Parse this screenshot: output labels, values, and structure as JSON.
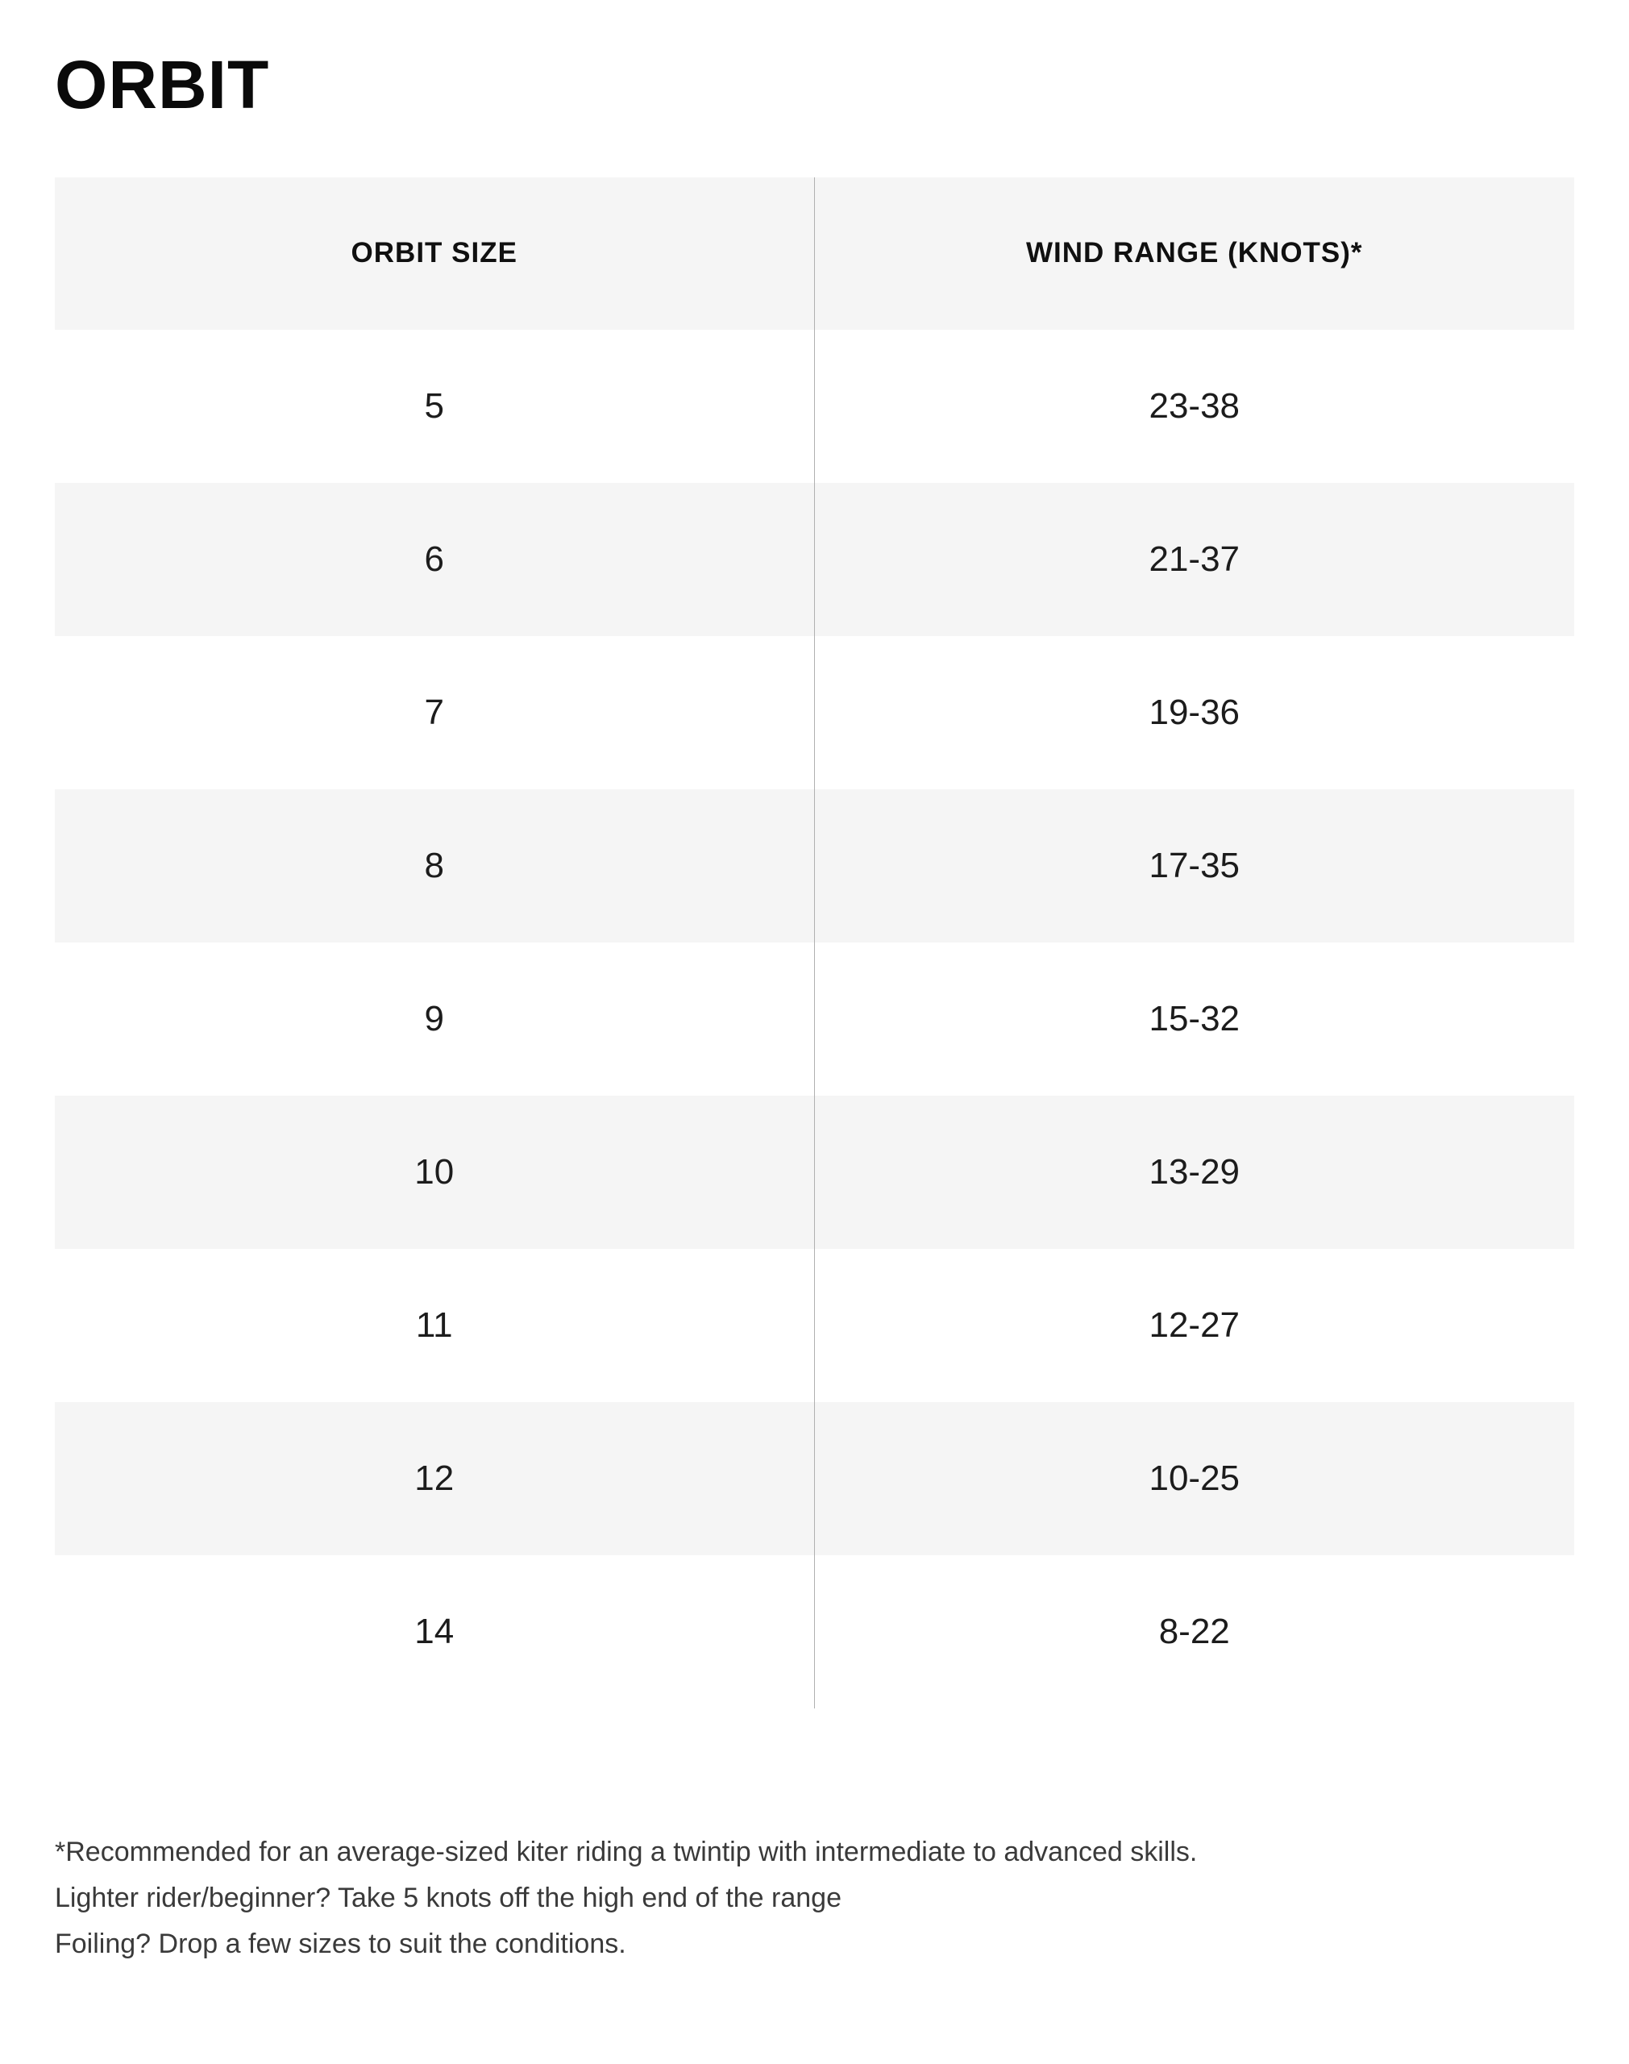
{
  "title": "ORBIT",
  "table": {
    "headers": [
      "ORBIT SIZE",
      "WIND RANGE (KNOTS)*"
    ],
    "rows": [
      {
        "size": "5",
        "wind": "23-38"
      },
      {
        "size": "6",
        "wind": "21-37"
      },
      {
        "size": "7",
        "wind": "19-36"
      },
      {
        "size": "8",
        "wind": "17-35"
      },
      {
        "size": "9",
        "wind": "15-32"
      },
      {
        "size": "10",
        "wind": "13-29"
      },
      {
        "size": "11",
        "wind": "12-27"
      },
      {
        "size": "12",
        "wind": "10-25"
      },
      {
        "size": "14",
        "wind": "8-22"
      }
    ]
  },
  "footnote": {
    "lines": [
      "*Recommended for an average-sized kiter riding a twintip with intermediate to advanced skills.",
      "Lighter rider/beginner? Take 5 knots off the high end of the range",
      "Foiling? Drop a few sizes to suit the conditions."
    ]
  },
  "colors": {
    "background": "#ffffff",
    "stripe": "#f5f5f5",
    "divider": "#b0b0b0",
    "title_text": "#0a0a0a",
    "header_text": "#101010",
    "data_text": "#1c1c1c",
    "footnote_text": "#3a3a3a"
  }
}
